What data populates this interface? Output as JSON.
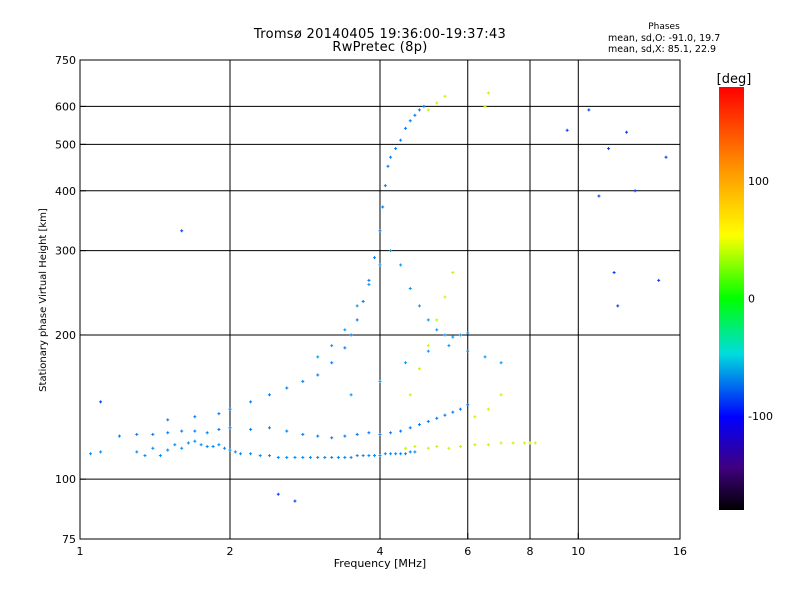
{
  "header": {
    "title_line1": "Tromsø 20140405 19:36:00-19:37:43",
    "title_line2": "RwPretec (8p)",
    "phase_heading": "Phases",
    "phase_o": "mean, sd,O: -91.0, 19.7",
    "phase_x": "mean, sd,X:  85.1, 22.9"
  },
  "colorbar": {
    "label": "[deg]",
    "ticks": [
      {
        "value": 100,
        "label": "100"
      },
      {
        "value": 0,
        "label": "0"
      },
      {
        "value": -100,
        "label": "-100"
      }
    ],
    "range": [
      -180,
      180
    ],
    "colormap": "rainbow"
  },
  "chart_data": {
    "type": "scatter",
    "title": "Tromsø 20140405 19:36:00-19:37:43",
    "subtitle": "RwPretec (8p)",
    "xlabel": "Frequency [MHz]",
    "ylabel": "Stationary phase Virtual Height [km]",
    "x_scale": "log",
    "y_scale": "log",
    "xlim": [
      1,
      16
    ],
    "ylim": [
      75,
      750
    ],
    "x_ticks": [
      {
        "value": 1,
        "label": "1"
      },
      {
        "value": 2,
        "label": "2"
      },
      {
        "value": 4,
        "label": "4"
      },
      {
        "value": 6,
        "label": "6"
      },
      {
        "value": 8,
        "label": "8"
      },
      {
        "value": 10,
        "label": "10"
      },
      {
        "value": 16,
        "label": "16"
      }
    ],
    "y_ticks": [
      {
        "value": 75,
        "label": "75"
      },
      {
        "value": 100,
        "label": "100"
      },
      {
        "value": 200,
        "label": "200"
      },
      {
        "value": 300,
        "label": "300"
      },
      {
        "value": 400,
        "label": "400"
      },
      {
        "value": 500,
        "label": "500"
      },
      {
        "value": 600,
        "label": "600"
      },
      {
        "value": 750,
        "label": "750"
      }
    ],
    "grid": true,
    "grid_x": [
      2,
      4,
      6,
      8,
      10
    ],
    "grid_y": [
      100,
      200,
      300,
      400,
      500,
      600
    ],
    "color_by": "phase [deg]",
    "series": [
      {
        "trace": "O-mode low band",
        "phase": -95,
        "points": [
          [
            1.05,
            113
          ],
          [
            1.1,
            114
          ],
          [
            1.3,
            114
          ],
          [
            1.35,
            112
          ],
          [
            1.4,
            116
          ],
          [
            1.45,
            112
          ],
          [
            1.5,
            115
          ],
          [
            1.55,
            118
          ],
          [
            1.6,
            116
          ],
          [
            1.65,
            119
          ],
          [
            1.7,
            120
          ],
          [
            1.75,
            118
          ],
          [
            1.8,
            117
          ],
          [
            1.85,
            117
          ],
          [
            1.9,
            118
          ],
          [
            1.95,
            116
          ],
          [
            2.0,
            115
          ],
          [
            2.05,
            114
          ],
          [
            2.1,
            113
          ],
          [
            2.2,
            113
          ],
          [
            2.3,
            112
          ],
          [
            2.4,
            112
          ],
          [
            2.5,
            111
          ],
          [
            2.6,
            111
          ],
          [
            2.7,
            111
          ],
          [
            2.8,
            111
          ],
          [
            2.9,
            111
          ],
          [
            3.0,
            111
          ],
          [
            3.1,
            111
          ],
          [
            3.2,
            111
          ],
          [
            3.3,
            111
          ],
          [
            3.4,
            111
          ],
          [
            3.5,
            111
          ],
          [
            3.6,
            112
          ],
          [
            3.7,
            112
          ],
          [
            3.8,
            112
          ],
          [
            3.9,
            112
          ],
          [
            4.0,
            112
          ],
          [
            4.1,
            113
          ],
          [
            4.2,
            113
          ],
          [
            4.3,
            113
          ],
          [
            4.4,
            113
          ],
          [
            4.5,
            113
          ],
          [
            4.6,
            114
          ],
          [
            4.7,
            114
          ]
        ]
      },
      {
        "trace": "O-mode second band",
        "phase": -100,
        "points": [
          [
            1.2,
            123
          ],
          [
            1.3,
            124
          ],
          [
            1.4,
            124
          ],
          [
            1.5,
            125
          ],
          [
            1.6,
            126
          ],
          [
            1.7,
            126
          ],
          [
            1.8,
            125
          ],
          [
            1.9,
            127
          ],
          [
            2.0,
            128
          ],
          [
            2.2,
            127
          ],
          [
            2.4,
            128
          ],
          [
            2.6,
            126
          ],
          [
            2.8,
            124
          ],
          [
            3.0,
            123
          ],
          [
            3.2,
            122
          ],
          [
            3.4,
            123
          ],
          [
            3.6,
            124
          ],
          [
            3.8,
            125
          ],
          [
            4.0,
            124
          ],
          [
            4.2,
            125
          ],
          [
            4.4,
            126
          ],
          [
            4.6,
            128
          ],
          [
            4.8,
            130
          ],
          [
            5.0,
            132
          ],
          [
            5.2,
            134
          ],
          [
            5.4,
            136
          ],
          [
            5.6,
            138
          ],
          [
            5.8,
            140
          ],
          [
            6.0,
            143
          ]
        ]
      },
      {
        "trace": "O-mode rising branch",
        "phase": -100,
        "points": [
          [
            1.5,
            133
          ],
          [
            1.7,
            135
          ],
          [
            1.9,
            137
          ],
          [
            2.0,
            140
          ],
          [
            2.2,
            145
          ],
          [
            2.4,
            150
          ],
          [
            2.6,
            155
          ],
          [
            2.8,
            160
          ],
          [
            3.0,
            165
          ],
          [
            3.2,
            175
          ],
          [
            3.4,
            188
          ],
          [
            3.5,
            200
          ],
          [
            3.6,
            215
          ],
          [
            3.7,
            235
          ],
          [
            3.8,
            260
          ],
          [
            3.9,
            290
          ],
          [
            4.0,
            330
          ],
          [
            4.05,
            370
          ],
          [
            4.1,
            410
          ],
          [
            4.15,
            450
          ],
          [
            4.2,
            470
          ],
          [
            4.3,
            490
          ],
          [
            4.4,
            510
          ],
          [
            4.5,
            540
          ],
          [
            4.6,
            560
          ],
          [
            4.7,
            575
          ],
          [
            4.8,
            590
          ],
          [
            4.9,
            600
          ]
        ]
      },
      {
        "trace": "O-mode middle traces",
        "phase": -90,
        "points": [
          [
            3.0,
            180
          ],
          [
            3.2,
            190
          ],
          [
            3.4,
            205
          ],
          [
            3.6,
            230
          ],
          [
            3.8,
            255
          ],
          [
            4.0,
            280
          ],
          [
            4.2,
            300
          ],
          [
            4.4,
            280
          ],
          [
            4.6,
            250
          ],
          [
            4.8,
            230
          ],
          [
            5.0,
            215
          ],
          [
            5.2,
            205
          ],
          [
            5.4,
            200
          ],
          [
            5.6,
            198
          ],
          [
            5.8,
            200
          ],
          [
            6.0,
            202
          ],
          [
            3.5,
            150
          ],
          [
            4.0,
            160
          ],
          [
            4.5,
            175
          ],
          [
            5.0,
            185
          ],
          [
            5.5,
            190
          ],
          [
            6.0,
            185
          ],
          [
            6.5,
            180
          ],
          [
            7.0,
            175
          ]
        ]
      },
      {
        "trace": "X-mode traces",
        "phase": 85,
        "points": [
          [
            4.5,
            116
          ],
          [
            4.7,
            117
          ],
          [
            5.0,
            116
          ],
          [
            5.2,
            117
          ],
          [
            5.5,
            116
          ],
          [
            5.8,
            117
          ],
          [
            6.2,
            118
          ],
          [
            6.6,
            118
          ],
          [
            7.0,
            119
          ],
          [
            7.4,
            119
          ],
          [
            7.8,
            119
          ],
          [
            8.0,
            119
          ],
          [
            8.2,
            119
          ],
          [
            4.6,
            150
          ],
          [
            4.8,
            170
          ],
          [
            5.0,
            190
          ],
          [
            5.2,
            215
          ],
          [
            5.4,
            240
          ],
          [
            5.6,
            270
          ],
          [
            5.0,
            590
          ],
          [
            5.2,
            610
          ],
          [
            5.4,
            630
          ],
          [
            6.5,
            600
          ],
          [
            6.6,
            640
          ],
          [
            6.2,
            135
          ],
          [
            6.6,
            140
          ],
          [
            7.0,
            150
          ]
        ]
      },
      {
        "trace": "scattered outliers",
        "phase": -120,
        "points": [
          [
            1.6,
            330
          ],
          [
            2.5,
            93
          ],
          [
            2.7,
            90
          ],
          [
            1.1,
            145
          ],
          [
            9.5,
            535
          ],
          [
            10.5,
            590
          ],
          [
            11.5,
            490
          ],
          [
            13.0,
            400
          ],
          [
            12.5,
            530
          ],
          [
            15.0,
            470
          ],
          [
            14.5,
            260
          ],
          [
            11.0,
            390
          ],
          [
            11.8,
            270
          ],
          [
            12.0,
            230
          ]
        ]
      }
    ]
  }
}
